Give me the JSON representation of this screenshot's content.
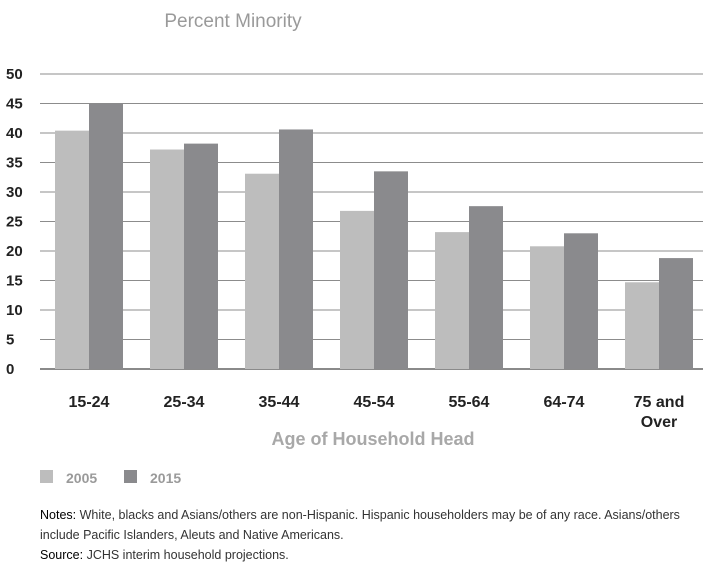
{
  "chart_data": {
    "type": "bar",
    "title": "Percent Minority",
    "xlabel": "Age of Household Head",
    "ylabel": "",
    "ylim": [
      0,
      50
    ],
    "yticks": [
      0,
      5,
      10,
      15,
      20,
      25,
      30,
      35,
      40,
      45,
      50
    ],
    "grid": true,
    "legend": "bottom-left",
    "categories": [
      "15-24",
      "25-34",
      "35-44",
      "45-54",
      "55-64",
      "64-74",
      "75 and Over"
    ],
    "series": [
      {
        "name": "2005",
        "color": "#bdbdbd",
        "values": [
          40.4,
          37.2,
          33.1,
          26.8,
          23.2,
          20.8,
          14.7
        ]
      },
      {
        "name": "2015",
        "color": "#8a8a8d",
        "values": [
          45.0,
          38.2,
          40.6,
          33.5,
          27.6,
          23.0,
          18.8
        ]
      }
    ]
  },
  "notes": {
    "notes_label": "Notes:",
    "notes_text": " White, blacks and Asians/others are non-Hispanic. Hispanic householders may be of any race. Asians/others include Pacific Islanders, Aleuts and Native Americans.",
    "source_label": "Source:",
    "source_text": " JCHS interim household projections."
  }
}
